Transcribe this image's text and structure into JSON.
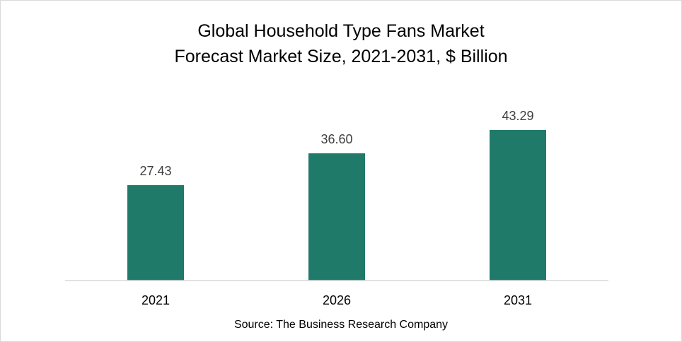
{
  "chart_data": {
    "type": "bar",
    "title": [
      "Global Household Type Fans Market",
      "Forecast Market Size, 2021-2031, $ Billion"
    ],
    "categories": [
      "2021",
      "2026",
      "2031"
    ],
    "values": [
      27.43,
      36.6,
      43.29
    ],
    "value_labels": [
      "27.43",
      "36.60",
      "43.29"
    ],
    "xlabel": "",
    "ylabel": "",
    "ylim": [
      0,
      50
    ],
    "grid": false,
    "legend": "none",
    "bar_color": "#1f7a6a",
    "source": "Source: The Business Research Company"
  }
}
